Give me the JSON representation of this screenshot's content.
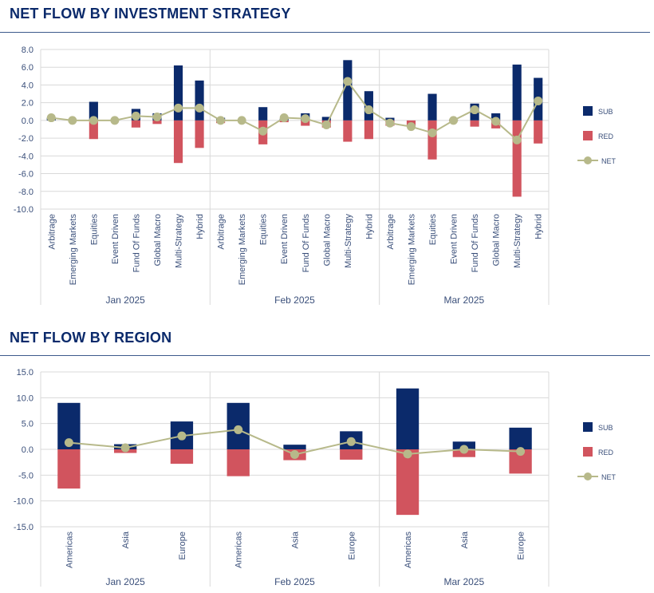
{
  "sections": {
    "strategy_title": "NET FLOW BY INVESTMENT STRATEGY",
    "region_title": "NET FLOW BY REGION"
  },
  "colors": {
    "sub": "#0b2a6b",
    "red": "#d1545e",
    "net": "#b7b98a",
    "grid": "#d9d9d9",
    "text": "#3a4f7a"
  },
  "chart_data": [
    {
      "type": "bar",
      "title": "NET FLOW BY INVESTMENT STRATEGY",
      "groups": [
        "Jan 2025",
        "Feb 2025",
        "Mar 2025"
      ],
      "categories": [
        "Arbitrage",
        "Emerging Markets",
        "Equities",
        "Event Driven",
        "Fund Of Funds",
        "Global Macro",
        "Multi-Strategy",
        "Hybrid"
      ],
      "ylim": [
        -10,
        8
      ],
      "yticks": [
        "8.0",
        "6.0",
        "4.0",
        "2.0",
        "0.0",
        "-2.0",
        "-4.0",
        "-6.0",
        "-8.0",
        "-10.0"
      ],
      "legend": [
        "SUB",
        "RED",
        "NET"
      ],
      "series": [
        {
          "name": "SUB",
          "values": [
            [
              0.3,
              0.0,
              2.1,
              0.0,
              1.3,
              0.8,
              6.2,
              4.5
            ],
            [
              0.3,
              0.0,
              1.5,
              0.2,
              0.8,
              0.4,
              6.8,
              3.3
            ],
            [
              0.3,
              0.0,
              3.0,
              0.1,
              1.9,
              0.8,
              6.3,
              4.8
            ]
          ]
        },
        {
          "name": "RED",
          "values": [
            [
              0.0,
              0.0,
              -2.1,
              0.0,
              -0.8,
              -0.4,
              -4.8,
              -3.1
            ],
            [
              -0.3,
              0.0,
              -2.7,
              -0.2,
              -0.6,
              -0.8,
              -2.4,
              -2.1
            ],
            [
              -0.6,
              -0.7,
              -4.4,
              -0.1,
              -0.7,
              -0.9,
              -8.6,
              -2.6
            ]
          ]
        },
        {
          "name": "NET",
          "values": [
            [
              0.3,
              0.0,
              0.0,
              0.0,
              0.5,
              0.4,
              1.4,
              1.4
            ],
            [
              0.0,
              0.0,
              -1.2,
              0.3,
              0.2,
              -0.5,
              4.4,
              1.2
            ],
            [
              -0.3,
              -0.7,
              -1.4,
              0.0,
              1.2,
              -0.1,
              -2.2,
              2.2
            ]
          ]
        }
      ]
    },
    {
      "type": "bar",
      "title": "NET FLOW BY REGION",
      "groups": [
        "Jan 2025",
        "Feb 2025",
        "Mar 2025"
      ],
      "categories": [
        "Americas",
        "Asia",
        "Europe"
      ],
      "ylim": [
        -15,
        15
      ],
      "yticks": [
        "15.0",
        "10.0",
        "5.0",
        "0.0",
        "-5.0",
        "-10.0",
        "-15.0"
      ],
      "legend": [
        "SUB",
        "RED",
        "NET"
      ],
      "series": [
        {
          "name": "SUB",
          "values": [
            [
              9.0,
              1.0,
              5.4
            ],
            [
              9.0,
              0.9,
              3.5
            ],
            [
              11.8,
              1.5,
              4.2
            ]
          ]
        },
        {
          "name": "RED",
          "values": [
            [
              -7.6,
              -0.7,
              -2.8
            ],
            [
              -5.2,
              -2.1,
              -2.0
            ],
            [
              -12.7,
              -1.5,
              -4.7
            ]
          ]
        },
        {
          "name": "NET",
          "values": [
            [
              1.3,
              0.3,
              2.6
            ],
            [
              3.8,
              -1.0,
              1.5
            ],
            [
              -0.9,
              0.0,
              -0.4
            ]
          ]
        }
      ]
    }
  ]
}
